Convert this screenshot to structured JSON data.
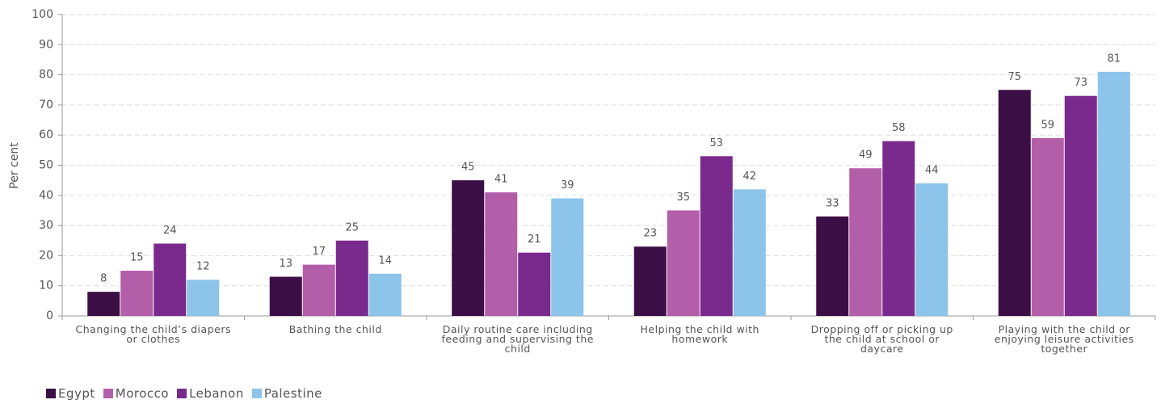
{
  "chart_data": {
    "type": "bar",
    "y_label": "Per cent",
    "categories": [
      "Changing the child’s diapers or clothes",
      "Bathing the child",
      "Daily routine care including feeding and supervising the child",
      "Helping the child with homework",
      "Dropping off or picking up the child at school or daycare",
      "Playing with the child or enjoying leisure activities together"
    ],
    "series": [
      {
        "name": "Egypt",
        "color": "#3b0f45",
        "values": [
          8,
          13,
          45,
          23,
          33,
          75
        ]
      },
      {
        "name": "Morocco",
        "color": "#b35ea8",
        "values": [
          15,
          17,
          41,
          35,
          49,
          59
        ]
      },
      {
        "name": "Lebanon",
        "color": "#7a2a8c",
        "values": [
          24,
          25,
          21,
          53,
          58,
          73
        ]
      },
      {
        "name": "Palestine",
        "color": "#8cc4ea",
        "values": [
          12,
          14,
          39,
          42,
          44,
          81
        ]
      }
    ],
    "ylim": [
      0,
      100
    ],
    "yticks": [
      0,
      10,
      20,
      30,
      40,
      50,
      60,
      70,
      80,
      90,
      100
    ],
    "grid": true
  }
}
